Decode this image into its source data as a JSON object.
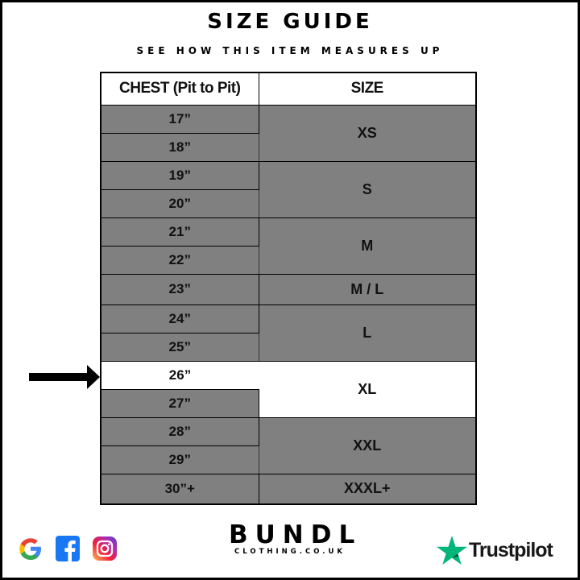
{
  "header": {
    "title": "SIZE GUIDE",
    "subtitle": "SEE HOW THIS ITEM MEASURES UP"
  },
  "table": {
    "columns": [
      "CHEST (Pit to Pit)",
      "SIZE"
    ],
    "chest": [
      "17”",
      "18”",
      "19”",
      "20”",
      "21”",
      "22”",
      "23”",
      "24”",
      "25”",
      "26”",
      "27”",
      "28”",
      "29”",
      "30”+"
    ],
    "sizes": [
      "XS",
      "S",
      "M",
      "M / L",
      "L",
      "XL",
      "XXL",
      "XXXL+"
    ],
    "highlighted_chest": "26”",
    "highlighted_size": "XL"
  },
  "footer": {
    "brand": "BUNDL",
    "brand_sub": "CLOTHING.CO.UK",
    "trustpilot": "Trustpilot",
    "social_icons": [
      "google-icon",
      "facebook-icon",
      "instagram-icon"
    ]
  },
  "colors": {
    "cell": "#808080",
    "highlight": "#ffffff",
    "trustpilot": "#00b67a"
  }
}
